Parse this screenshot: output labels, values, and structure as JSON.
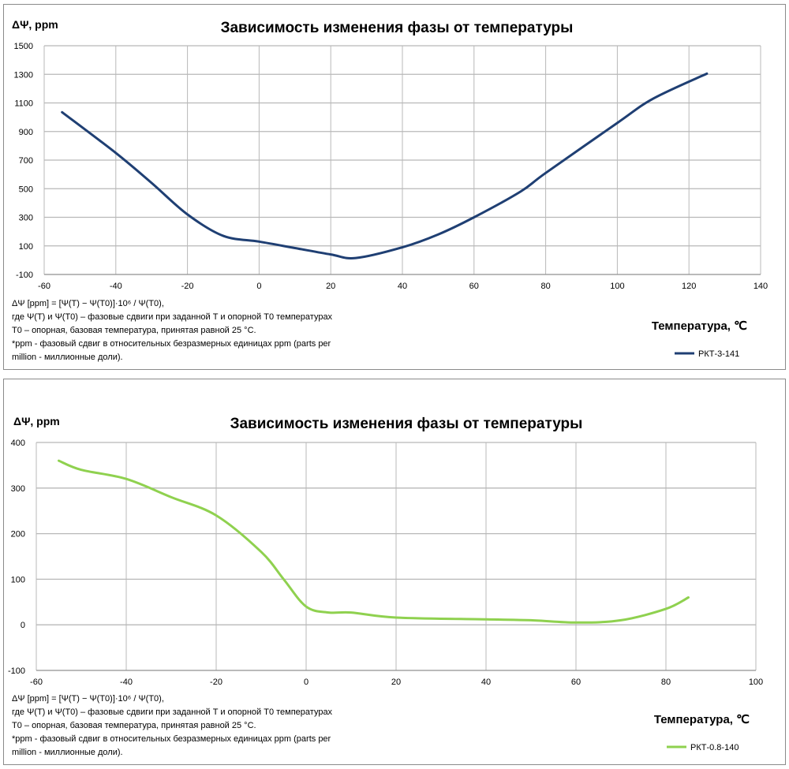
{
  "chart_data": [
    {
      "type": "line",
      "title": "Зависимость изменения фазы от температуры",
      "ylabel": "ΔΨ, ppm",
      "xlabel": "Температура, ℃",
      "xlim": [
        -60,
        140
      ],
      "ylim": [
        -100,
        1500
      ],
      "xticks": [
        -60,
        -40,
        -20,
        0,
        20,
        40,
        60,
        80,
        100,
        120,
        140
      ],
      "yticks": [
        -100,
        100,
        300,
        500,
        700,
        900,
        1100,
        1300,
        1500
      ],
      "grid": true,
      "legend": "bottom-right",
      "notes": [
        "ΔΨ [ppm] = [Ψ(T) − Ψ(T0)]·10⁶ / Ψ(T0),",
        "где Ψ(T) и Ψ(T0) – фазовые сдвиги при заданной T и опорной T0 температурах",
        "T0 – опорная, базовая температура, принятая равной 25 °C.",
        "*ppm - фазовый сдвиг в относительных безразмерных единицах ppm (parts per",
        "million - миллионные доли)."
      ],
      "series": [
        {
          "name": "РКТ-3-141",
          "color": "#1f3f73",
          "x": [
            -55,
            -40,
            -30,
            -20,
            -10,
            0,
            10,
            20,
            27,
            40,
            50,
            60,
            73,
            80,
            100,
            110,
            125
          ],
          "y": [
            1035,
            750,
            540,
            320,
            170,
            130,
            85,
            40,
            15,
            90,
            180,
            300,
            480,
            610,
            960,
            1130,
            1305
          ]
        }
      ]
    },
    {
      "type": "line",
      "title": "Зависимость изменения фазы от температуры",
      "ylabel": "ΔΨ, ppm",
      "xlabel": "Температура, ℃",
      "xlim": [
        -60,
        100
      ],
      "ylim": [
        -100,
        400
      ],
      "xticks": [
        -60,
        -40,
        -20,
        0,
        20,
        40,
        60,
        80,
        100
      ],
      "yticks": [
        -100,
        0,
        100,
        200,
        300,
        400
      ],
      "grid": true,
      "legend": "bottom-right",
      "notes": [
        "ΔΨ [ppm] = [Ψ(T) − Ψ(T0)]·10⁶ / Ψ(T0),",
        "где Ψ(T) и Ψ(T0) – фазовые сдвиги при заданной T и опорной T0 температурах",
        "T0 – опорная, базовая температура, принятая равной 25 °C.",
        "*ppm - фазовый сдвиг в относительных безразмерных единицах ppm (parts per",
        "million - миллионные доли)."
      ],
      "series": [
        {
          "name": "РКТ-0.8-140",
          "color": "#8fd14f",
          "x": [
            -55,
            -50,
            -40,
            -30,
            -20,
            -10,
            -5,
            0,
            5,
            10,
            20,
            40,
            50,
            60,
            70,
            80,
            85
          ],
          "y": [
            360,
            340,
            320,
            280,
            240,
            160,
            100,
            40,
            27,
            27,
            16,
            12,
            10,
            5,
            10,
            35,
            60
          ]
        }
      ]
    }
  ]
}
